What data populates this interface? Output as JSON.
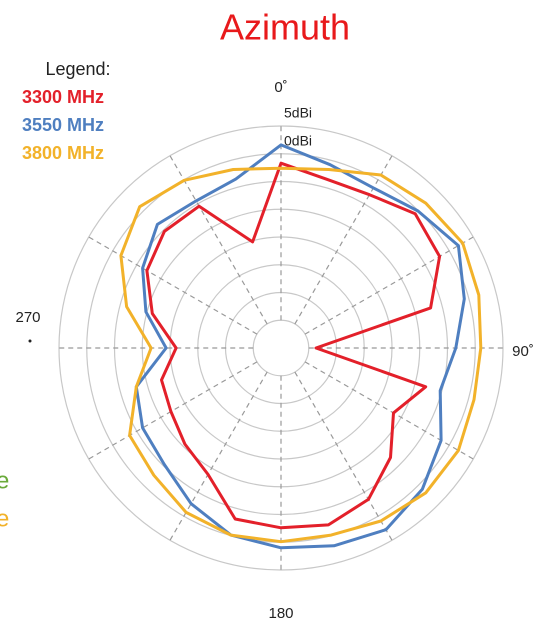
{
  "chart_data": {
    "type": "polar",
    "title": "Azimuth",
    "title_color": "#e8191b",
    "legend_title": "Legend:",
    "legend": "upper left",
    "rlim": [
      -35,
      5
    ],
    "rticks": [
      {
        "value": 5,
        "label": "5dBi"
      },
      {
        "value": 0,
        "label": "0dBi"
      }
    ],
    "rgrid": [
      -5,
      -10,
      -15,
      -20,
      -25,
      -30
    ],
    "angle_labels": [
      {
        "value": 0,
        "label": "0˚"
      },
      {
        "value": 90,
        "label": "90˚"
      },
      {
        "value": 180,
        "label": "180"
      },
      {
        "value": 270,
        "label": "270"
      }
    ],
    "spoke_step": 30,
    "theta": [
      0,
      15,
      30,
      45,
      60,
      75,
      90,
      105,
      120,
      135,
      150,
      165,
      180,
      195,
      210,
      225,
      240,
      255,
      270,
      285,
      300,
      315,
      330,
      345
    ],
    "series": [
      {
        "name": "3300 MHz",
        "color": "#e3202a",
        "values": [
          -1.7,
          -3.5,
          -3.1,
          -0.8,
          -2.0,
          -7.1,
          -28.7,
          -8.0,
          -11.6,
          -7.1,
          -3.5,
          -2.0,
          -2.6,
          -3.1,
          -8.7,
          -10.5,
          -12.1,
          -12.7,
          -16.1,
          -11.0,
          -7.1,
          -5.3,
          -5.5,
          -15.2
        ]
      },
      {
        "name": "3550 MHz",
        "color": "#4f7fc0",
        "values": [
          1.6,
          -0.8,
          -1.7,
          -0.1,
          1.9,
          -0.8,
          -3.5,
          -5.3,
          -1.7,
          1.0,
          2.8,
          1.9,
          1.0,
          -0.1,
          -2.6,
          -5.3,
          -6.2,
          -8.0,
          -14.3,
          -9.8,
          -6.2,
          -3.5,
          -4.4,
          -3.5
        ]
      },
      {
        "name": "3800 MHz",
        "color": "#f2b22a",
        "values": [
          -2.6,
          -1.7,
          1.0,
          1.9,
          2.8,
          1.9,
          1.0,
          1.0,
          1.9,
          1.9,
          1.0,
          -0.1,
          -0.1,
          -0.1,
          -0.8,
          -2.6,
          -3.5,
          -8.0,
          -11.6,
          -6.2,
          -1.7,
          1.0,
          -0.1,
          -1.7
        ]
      }
    ],
    "annotations": [
      {
        "text": "e",
        "color": "#6aaa3a"
      },
      {
        "text": "e",
        "color": "#f2b22a"
      }
    ]
  }
}
